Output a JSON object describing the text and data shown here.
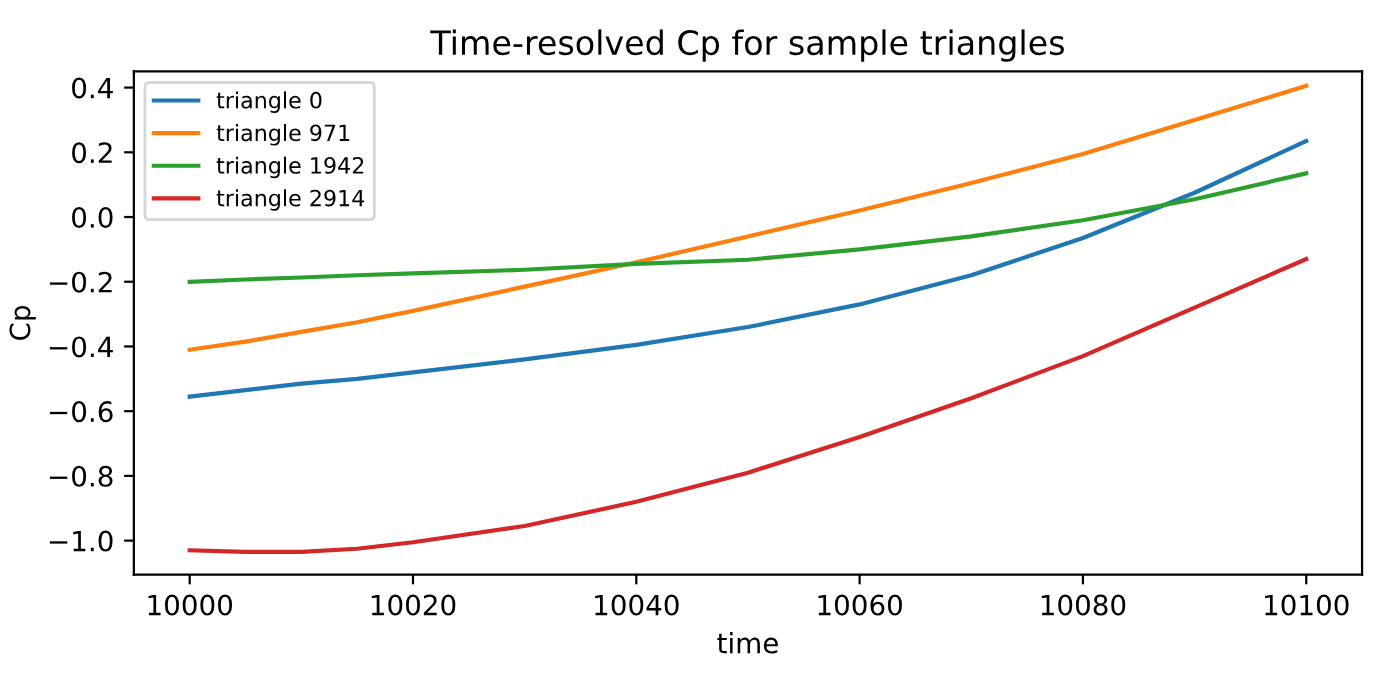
{
  "chart_data": {
    "type": "line",
    "title": "Time-resolved Cp for sample triangles",
    "xlabel": "time",
    "ylabel": "Cp",
    "x": [
      10000,
      10005,
      10010,
      10015,
      10020,
      10030,
      10040,
      10050,
      10060,
      10070,
      10080,
      10090,
      10100
    ],
    "series": [
      {
        "name": "triangle 0",
        "color": "#1f77b4",
        "values": [
          -0.555,
          -0.535,
          -0.515,
          -0.5,
          -0.48,
          -0.44,
          -0.395,
          -0.34,
          -0.27,
          -0.18,
          -0.065,
          0.075,
          0.235
        ]
      },
      {
        "name": "triangle 971",
        "color": "#ff7f0e",
        "values": [
          -0.41,
          -0.385,
          -0.355,
          -0.325,
          -0.29,
          -0.215,
          -0.14,
          -0.06,
          0.02,
          0.105,
          0.195,
          0.3,
          0.405
        ]
      },
      {
        "name": "triangle 1942",
        "color": "#2ca02c",
        "values": [
          -0.2,
          -0.193,
          -0.187,
          -0.18,
          -0.174,
          -0.163,
          -0.145,
          -0.132,
          -0.1,
          -0.06,
          -0.01,
          0.055,
          0.135
        ]
      },
      {
        "name": "triangle 2914",
        "color": "#d62728",
        "values": [
          -1.03,
          -1.035,
          -1.035,
          -1.025,
          -1.005,
          -0.955,
          -0.88,
          -0.79,
          -0.68,
          -0.56,
          -0.43,
          -0.28,
          -0.13
        ]
      }
    ],
    "xlim": [
      9995,
      10105
    ],
    "ylim": [
      -1.105,
      0.45
    ],
    "xticks": [
      10000,
      10020,
      10040,
      10060,
      10080,
      10100
    ],
    "yticks": [
      {
        "value": -1.0,
        "label": "−1.0"
      },
      {
        "value": -0.8,
        "label": "−0.8"
      },
      {
        "value": -0.6,
        "label": "−0.6"
      },
      {
        "value": -0.4,
        "label": "−0.4"
      },
      {
        "value": -0.2,
        "label": "−0.2"
      },
      {
        "value": 0.0,
        "label": "0.0"
      },
      {
        "value": 0.2,
        "label": "0.2"
      },
      {
        "value": 0.4,
        "label": "0.4"
      }
    ],
    "legend": "top left",
    "grid": false
  }
}
